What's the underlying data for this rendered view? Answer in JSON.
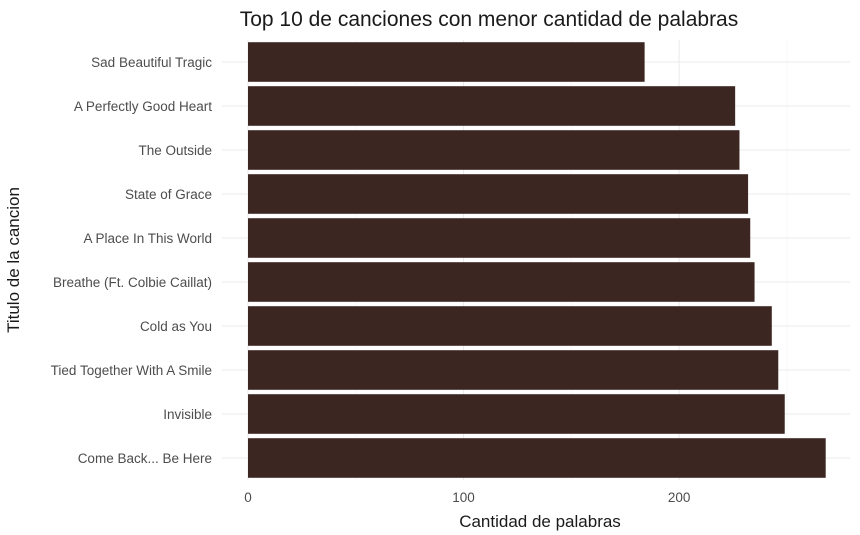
{
  "chart_data": {
    "type": "bar",
    "orientation": "horizontal",
    "title": "Top 10 de canciones con menor cantidad de palabras",
    "xlabel": "Cantidad de palabras",
    "ylabel": "Titulo de la cancion",
    "xlim": [
      0,
      270
    ],
    "xticks": [
      0,
      100,
      200
    ],
    "grid": true,
    "legend": "none",
    "bar_color": "#3c2622",
    "categories": [
      "Sad Beautiful Tragic",
      "A Perfectly Good Heart",
      "The Outside",
      "State of Grace",
      "A Place In This World",
      "Breathe (Ft. Colbie Caillat)",
      "Cold as You",
      "Tied Together With A Smile",
      "Invisible",
      "Come Back... Be Here"
    ],
    "values": [
      184,
      226,
      228,
      232,
      233,
      235,
      243,
      246,
      249,
      268
    ]
  }
}
